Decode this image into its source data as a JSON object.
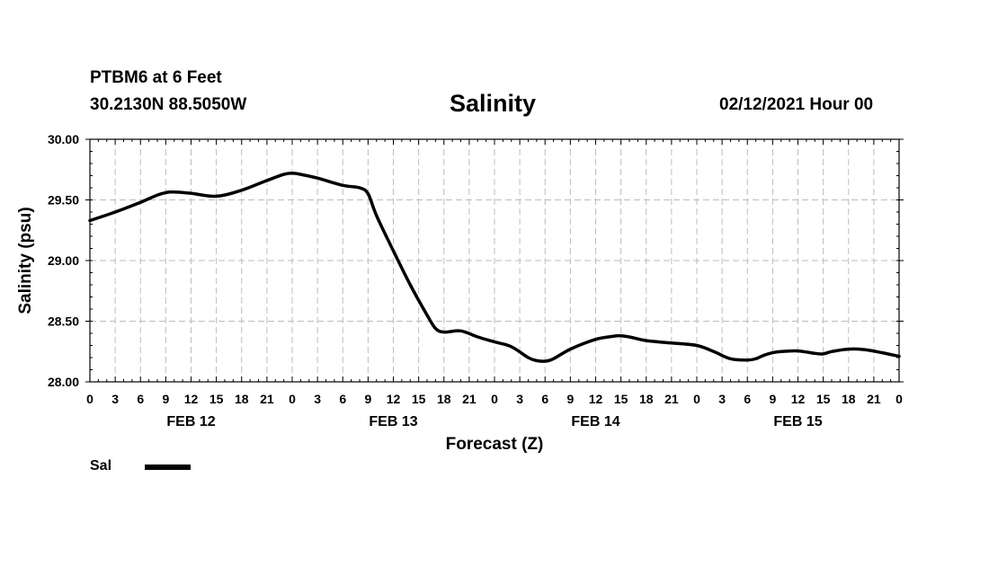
{
  "header": {
    "station": "PTBM6 at 6 Feet",
    "coords": "30.2130N 88.5050W",
    "title": "Salinity",
    "timestamp": "02/12/2021 Hour 00"
  },
  "legend": {
    "label": "Sal",
    "color": "#000000"
  },
  "chart_data": {
    "type": "line",
    "title": "Salinity",
    "xlabel": "Forecast (Z)",
    "ylabel": "Salinity (psu)",
    "x_unit": "hours from FEB 12 00Z",
    "xlim": [
      0,
      96
    ],
    "ylim": [
      28.0,
      30.0
    ],
    "y_ticks": [
      "28.00",
      "28.50",
      "29.00",
      "29.50",
      "30.00"
    ],
    "y_tick_values": [
      28.0,
      28.5,
      29.0,
      29.5,
      30.0
    ],
    "x_tick_labels": [
      "0",
      "3",
      "6",
      "9",
      "12",
      "15",
      "18",
      "21",
      "0",
      "3",
      "6",
      "9",
      "12",
      "15",
      "18",
      "21",
      "0",
      "3",
      "6",
      "9",
      "12",
      "15",
      "18",
      "21",
      "0",
      "3",
      "6",
      "9",
      "12",
      "15",
      "18",
      "21",
      "0"
    ],
    "day_labels": [
      {
        "label": "FEB 12",
        "hour": 12
      },
      {
        "label": "FEB 13",
        "hour": 36
      },
      {
        "label": "FEB 14",
        "hour": 60
      },
      {
        "label": "FEB 15",
        "hour": 84
      }
    ],
    "grid": true,
    "series": [
      {
        "name": "Sal",
        "x": [
          0,
          3,
          6,
          8,
          9,
          10,
          12,
          15,
          18,
          21,
          23,
          24,
          25,
          27,
          30,
          32,
          33,
          34,
          36,
          38,
          40,
          41,
          42,
          44,
          46,
          48,
          50,
          52,
          53,
          54,
          55,
          57,
          60,
          62,
          63,
          64,
          66,
          69,
          72,
          74,
          76,
          78,
          79,
          80,
          81,
          82,
          84,
          86,
          87,
          88,
          90,
          92,
          94,
          96
        ],
        "y": [
          29.33,
          29.4,
          29.48,
          29.54,
          29.56,
          29.565,
          29.555,
          29.53,
          29.58,
          29.66,
          29.71,
          29.72,
          29.71,
          29.68,
          29.62,
          29.6,
          29.55,
          29.37,
          29.08,
          28.8,
          28.55,
          28.44,
          28.41,
          28.42,
          28.37,
          28.33,
          28.29,
          28.2,
          28.175,
          28.17,
          28.19,
          28.27,
          28.35,
          28.375,
          28.38,
          28.37,
          28.34,
          28.32,
          28.3,
          28.25,
          28.19,
          28.18,
          28.19,
          28.22,
          28.24,
          28.25,
          28.255,
          28.235,
          28.23,
          28.25,
          28.27,
          28.265,
          28.24,
          28.21
        ]
      }
    ]
  }
}
